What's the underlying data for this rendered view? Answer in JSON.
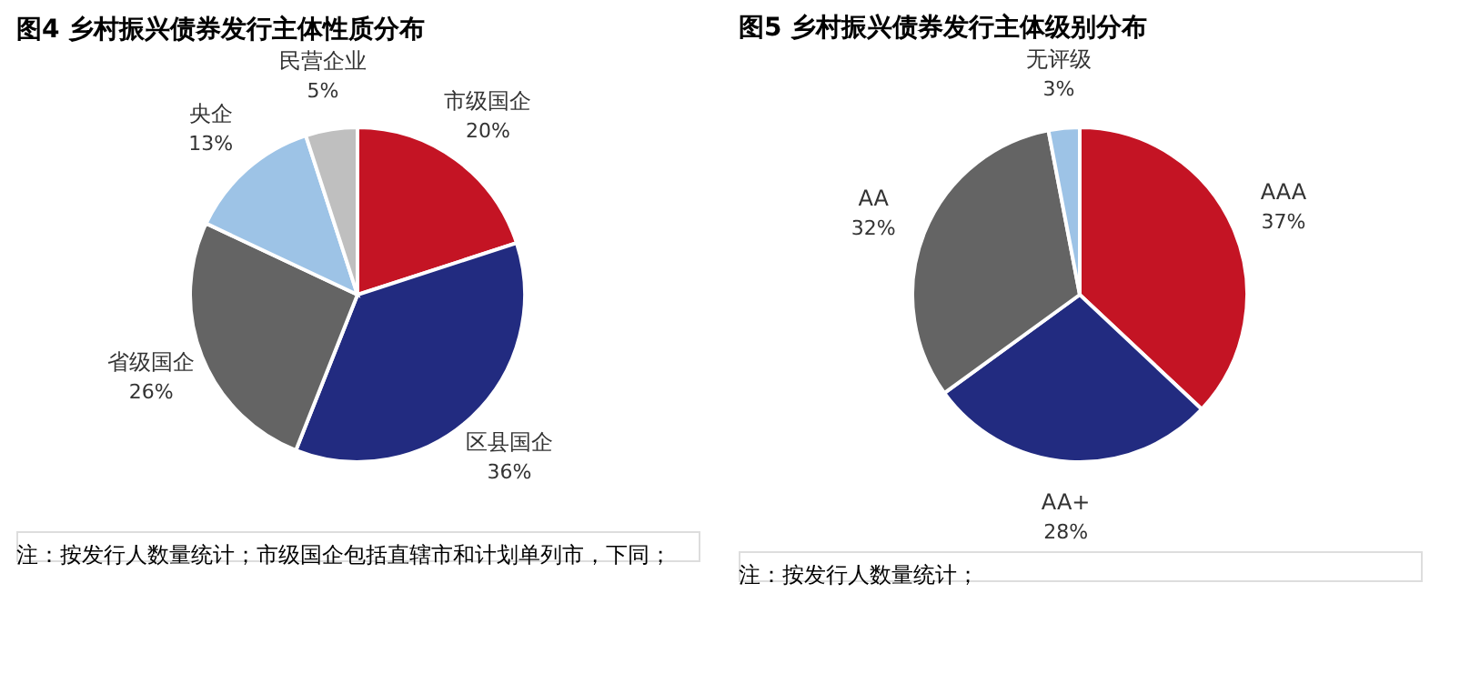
{
  "chart_data": [
    {
      "type": "pie",
      "title": "图4 乡村振兴债券发行主体性质分布",
      "categories": [
        "市级国企",
        "区县国企",
        "省级国企",
        "央企",
        "民营企业"
      ],
      "values": [
        20,
        36,
        26,
        13,
        5
      ],
      "colors": [
        "#c41424",
        "#222b80",
        "#646464",
        "#9dc3e6",
        "#bfbfbf"
      ],
      "value_labels": [
        "20%",
        "36%",
        "26%",
        "13%",
        "5%"
      ],
      "legend": false,
      "annotations": [
        "注：按发行人数量统计；市级国企包括直辖市和计划单列市，下同；"
      ]
    },
    {
      "type": "pie",
      "title": "图5 乡村振兴债券发行主体级别分布",
      "categories": [
        "AAA",
        "AA+",
        "AA",
        "无评级"
      ],
      "values": [
        37,
        28,
        32,
        3
      ],
      "colors": [
        "#c41424",
        "#222b80",
        "#646464",
        "#9dc3e6"
      ],
      "value_labels": [
        "37%",
        "28%",
        "32%",
        "3%"
      ],
      "legend": false,
      "annotations": [
        "注：按发行人数量统计；"
      ]
    }
  ]
}
